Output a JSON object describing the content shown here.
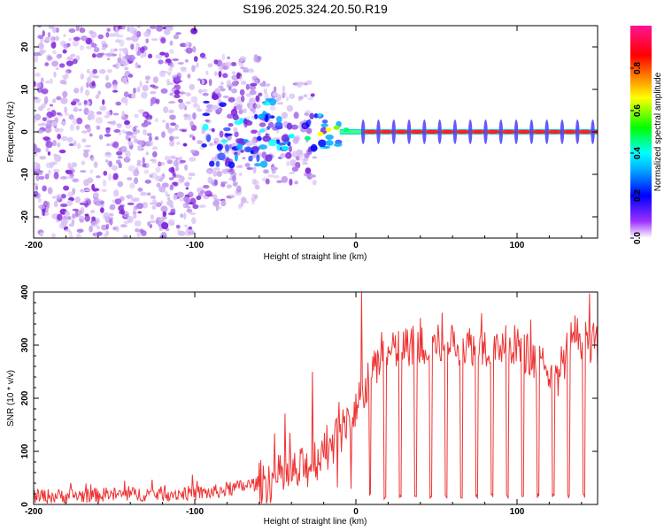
{
  "title": "S196.2025.324.20.50.R19",
  "chart_data": [
    {
      "type": "heatmap",
      "name": "spectrogram",
      "xlabel": "Height of straight line (km)",
      "ylabel": "Frequency (Hz)",
      "xlim": [
        -200,
        150
      ],
      "ylim": [
        -25,
        25
      ],
      "xticks": [
        "-200",
        "-100",
        "0",
        "100"
      ],
      "xtick_values": [
        -200,
        -100,
        0,
        100
      ],
      "yticks": [
        "-20",
        "-10",
        "0",
        "10",
        "20"
      ],
      "ytick_values": [
        -20,
        -10,
        0,
        10,
        20
      ],
      "noise_region_km": [
        -200,
        -35
      ],
      "signal_region_km": [
        -35,
        150
      ],
      "carrier_frequency_hz": 0,
      "pulse_spacing_km": 9.5,
      "colorbar": {
        "label": "Normalized spectral amplitude",
        "range": [
          0,
          1
        ],
        "ticks": [
          "0.0",
          "0.2",
          "0.4",
          "0.6",
          "0.8"
        ],
        "tick_values": [
          0.0,
          0.2,
          0.4,
          0.6,
          0.8
        ],
        "colors": [
          "#ffffff",
          "#8a2be2",
          "#0000ff",
          "#00ffff",
          "#00ff00",
          "#ffff00",
          "#ff8000",
          "#ff0000",
          "#ff1493"
        ]
      }
    },
    {
      "type": "line",
      "name": "snr",
      "xlabel": "Height of straight line (km)",
      "ylabel": "SNR (10 * v/v)",
      "xlim": [
        -200,
        150
      ],
      "ylim": [
        0,
        400
      ],
      "xticks": [
        "-200",
        "-100",
        "0",
        "100"
      ],
      "xtick_values": [
        -200,
        -100,
        0,
        100
      ],
      "yticks": [
        "0",
        "100",
        "200",
        "300",
        "400"
      ],
      "ytick_values": [
        0,
        100,
        200,
        300,
        400
      ],
      "color": "#ee3333",
      "baseline_level_x": [
        -200,
        -90,
        -60,
        -35,
        -20,
        -5,
        3,
        8,
        15,
        30,
        60,
        100,
        125,
        135,
        150
      ],
      "baseline_level_y": [
        15,
        22,
        40,
        60,
        100,
        150,
        200,
        230,
        270,
        300,
        300,
        300,
        240,
        320,
        300
      ],
      "spikes": [
        {
          "x": -27,
          "y": 250
        },
        {
          "x": 3.5,
          "y": 400
        }
      ],
      "dropout_spacing_km": 9.5,
      "dropout_level": 10
    }
  ]
}
